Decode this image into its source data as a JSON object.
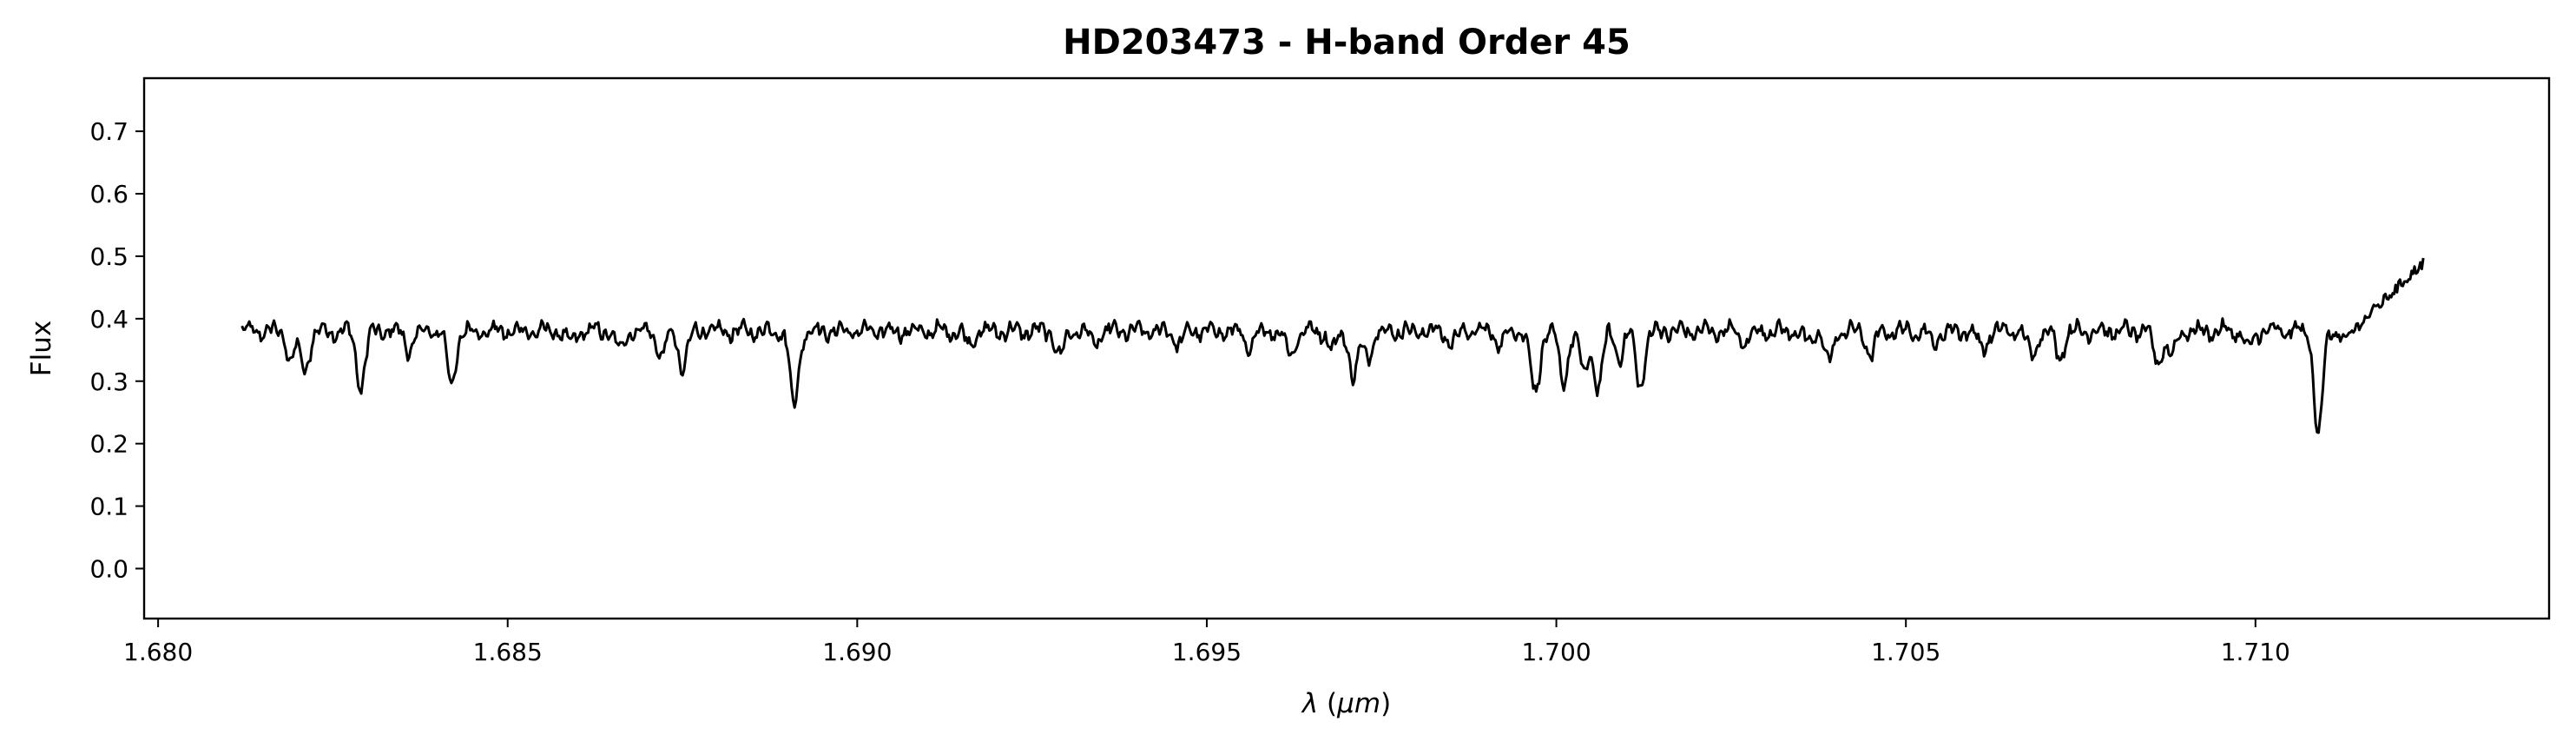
{
  "chart_data": {
    "type": "line",
    "title": "HD203473 - H-band Order 45",
    "xlabel": "λ (μm)",
    "xlabel_parts": {
      "symbol": "λ",
      "open": " (",
      "unit": "μm",
      "close": ")"
    },
    "ylabel": "Flux",
    "xlim": [
      1.6798,
      1.7142
    ],
    "ylim": [
      -0.08,
      0.785
    ],
    "xticks": [
      1.68,
      1.685,
      1.69,
      1.695,
      1.7,
      1.705,
      1.71
    ],
    "xtick_labels": [
      "1.680",
      "1.685",
      "1.690",
      "1.695",
      "1.700",
      "1.705",
      "1.710"
    ],
    "yticks": [
      0.0,
      0.1,
      0.2,
      0.3,
      0.4,
      0.5,
      0.6,
      0.7
    ],
    "ytick_labels": [
      "0.0",
      "0.1",
      "0.2",
      "0.3",
      "0.4",
      "0.5",
      "0.6",
      "0.7"
    ],
    "grid": false,
    "line_color": "#000000",
    "x_start": 1.6812,
    "x_end": 1.7124,
    "continuum": 0.38,
    "continuum_noise": 0.008,
    "absorption_lines": [
      {
        "x": 1.6819,
        "depth": 0.045
      },
      {
        "x": 1.6821,
        "depth": 0.065
      },
      {
        "x": 1.6829,
        "depth": 0.09
      },
      {
        "x": 1.6836,
        "depth": 0.03
      },
      {
        "x": 1.6842,
        "depth": 0.085
      },
      {
        "x": 1.6859,
        "depth": 0.02
      },
      {
        "x": 1.6866,
        "depth": 0.03
      },
      {
        "x": 1.6872,
        "depth": 0.04
      },
      {
        "x": 1.6875,
        "depth": 0.06
      },
      {
        "x": 1.6891,
        "depth": 0.12
      },
      {
        "x": 1.6916,
        "depth": 0.02
      },
      {
        "x": 1.6929,
        "depth": 0.04
      },
      {
        "x": 1.6934,
        "depth": 0.02
      },
      {
        "x": 1.6946,
        "depth": 0.02
      },
      {
        "x": 1.6956,
        "depth": 0.03
      },
      {
        "x": 1.6962,
        "depth": 0.04
      },
      {
        "x": 1.6968,
        "depth": 0.03
      },
      {
        "x": 1.6971,
        "depth": 0.075
      },
      {
        "x": 1.6973,
        "depth": 0.04
      },
      {
        "x": 1.6985,
        "depth": 0.02
      },
      {
        "x": 1.6992,
        "depth": 0.02
      },
      {
        "x": 1.6997,
        "depth": 0.105
      },
      {
        "x": 1.7001,
        "depth": 0.085
      },
      {
        "x": 1.7004,
        "depth": 0.07
      },
      {
        "x": 1.7006,
        "depth": 0.09
      },
      {
        "x": 1.7009,
        "depth": 0.04
      },
      {
        "x": 1.7012,
        "depth": 0.09
      },
      {
        "x": 1.7027,
        "depth": 0.02
      },
      {
        "x": 1.7036,
        "depth": 0.02
      },
      {
        "x": 1.7039,
        "depth": 0.05
      },
      {
        "x": 1.7045,
        "depth": 0.04
      },
      {
        "x": 1.7054,
        "depth": 0.02
      },
      {
        "x": 1.7061,
        "depth": 0.03
      },
      {
        "x": 1.7068,
        "depth": 0.04
      },
      {
        "x": 1.7072,
        "depth": 0.04
      },
      {
        "x": 1.7086,
        "depth": 0.05
      },
      {
        "x": 1.7088,
        "depth": 0.04
      },
      {
        "x": 1.7099,
        "depth": 0.03
      },
      {
        "x": 1.7109,
        "depth": 0.165
      }
    ],
    "rising_tail": {
      "x_from": 1.7112,
      "x_to": 1.7124,
      "y_from": 0.36,
      "y_to": 0.49
    }
  }
}
